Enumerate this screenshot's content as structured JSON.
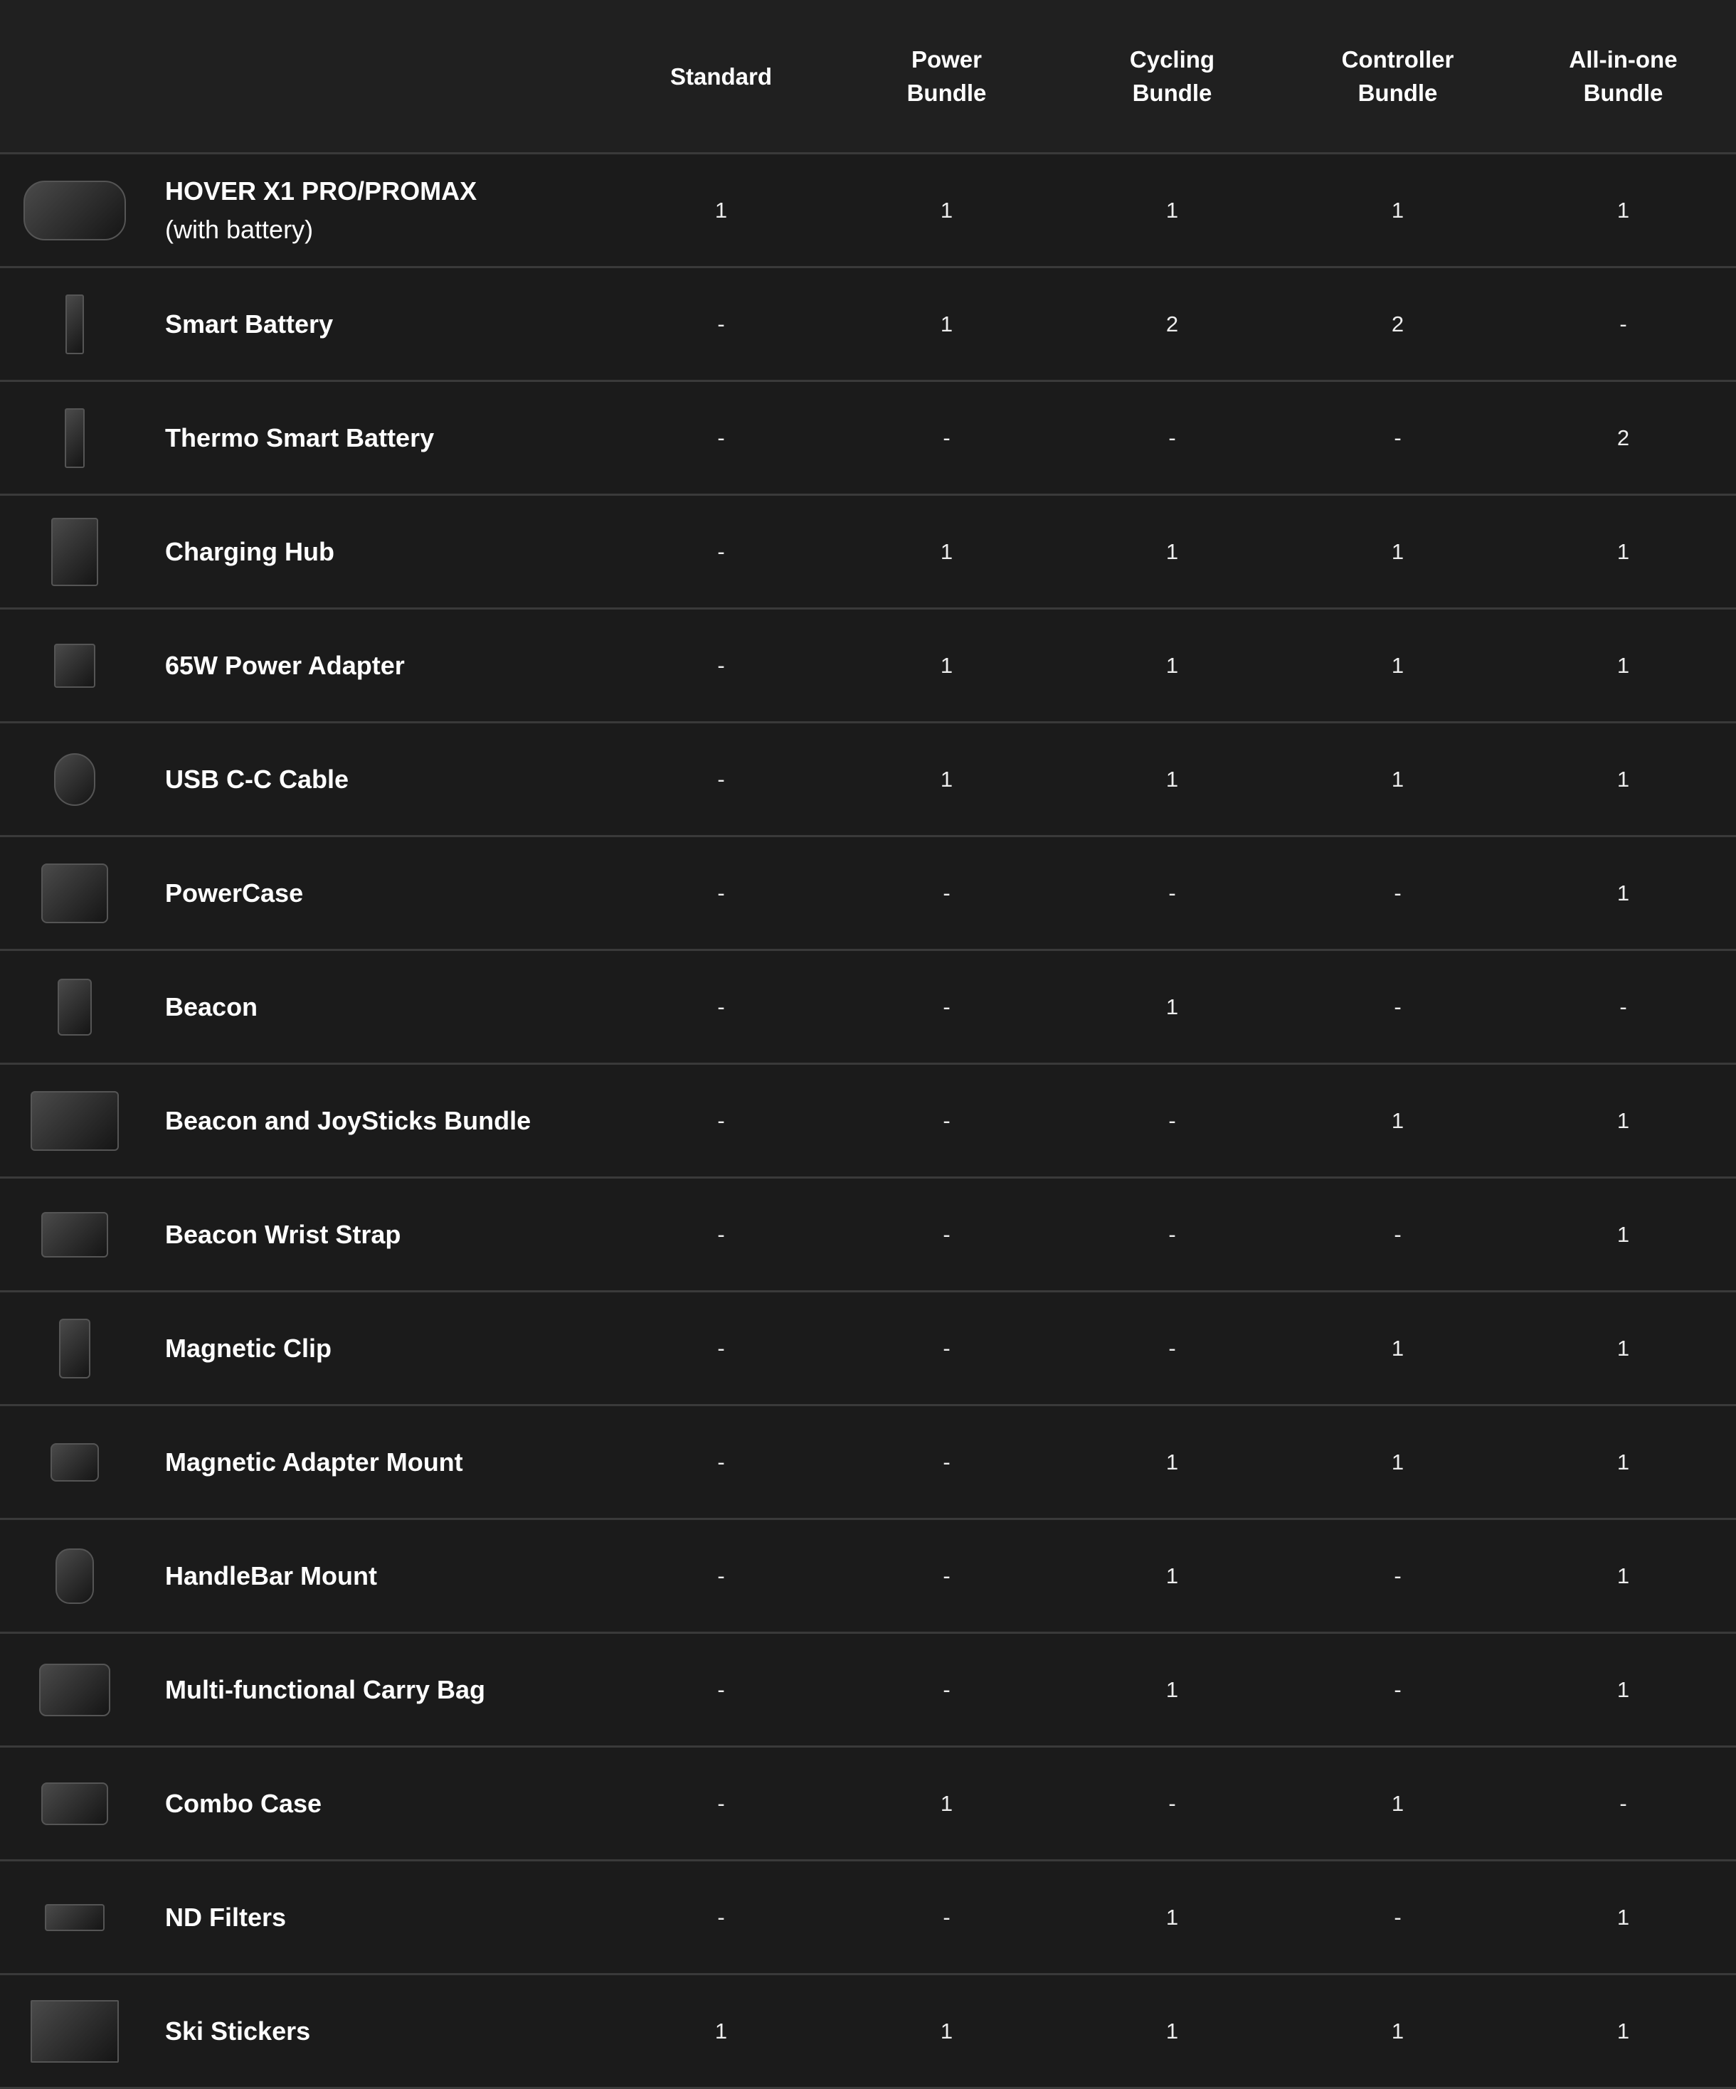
{
  "columns": [
    "Standard",
    "Power\nBundle",
    "Cycling\nBundle",
    "Controller\nBundle",
    "All-in-one\nBundle"
  ],
  "rows": [
    {
      "name": "HOVER X1 PRO/PROMAX",
      "sub": "(with battery)",
      "icon": "drone-image",
      "values": [
        "1",
        "1",
        "1",
        "1",
        "1"
      ]
    },
    {
      "name": "Smart Battery",
      "icon": "battery-image",
      "values": [
        "-",
        "1",
        "2",
        "2",
        "-"
      ]
    },
    {
      "name": "Thermo Smart Battery",
      "icon": "thermo-battery-image",
      "values": [
        "-",
        "-",
        "-",
        "-",
        "2"
      ]
    },
    {
      "name": "Charging Hub",
      "icon": "charging-hub-image",
      "values": [
        "-",
        "1",
        "1",
        "1",
        "1"
      ]
    },
    {
      "name": "65W Power Adapter",
      "icon": "power-adapter-image",
      "values": [
        "-",
        "1",
        "1",
        "1",
        "1"
      ]
    },
    {
      "name": "USB C-C Cable",
      "icon": "cable-image",
      "values": [
        "-",
        "1",
        "1",
        "1",
        "1"
      ]
    },
    {
      "name": "PowerCase",
      "icon": "powercase-image",
      "values": [
        "-",
        "-",
        "-",
        "-",
        "1"
      ]
    },
    {
      "name": "Beacon",
      "icon": "beacon-image",
      "values": [
        "-",
        "-",
        "1",
        "-",
        "-"
      ]
    },
    {
      "name": "Beacon and JoySticks Bundle",
      "icon": "beacon-joysticks-image",
      "values": [
        "-",
        "-",
        "-",
        "1",
        "1"
      ]
    },
    {
      "name": "Beacon Wrist Strap",
      "icon": "wrist-strap-image",
      "values": [
        "-",
        "-",
        "-",
        "-",
        "1"
      ]
    },
    {
      "name": "Magnetic Clip",
      "icon": "magnetic-clip-image",
      "values": [
        "-",
        "-",
        "-",
        "1",
        "1"
      ]
    },
    {
      "name": "Magnetic Adapter Mount",
      "icon": "adapter-mount-image",
      "values": [
        "-",
        "-",
        "1",
        "1",
        "1"
      ]
    },
    {
      "name": "HandleBar Mount",
      "icon": "handlebar-mount-image",
      "values": [
        "-",
        "-",
        "1",
        "-",
        "1"
      ]
    },
    {
      "name": "Multi-functional Carry Bag",
      "icon": "carry-bag-image",
      "values": [
        "-",
        "-",
        "1",
        "-",
        "1"
      ]
    },
    {
      "name": "Combo Case",
      "icon": "combo-case-image",
      "values": [
        "-",
        "1",
        "-",
        "1",
        "-"
      ]
    },
    {
      "name": "ND Filters",
      "icon": "nd-filters-image",
      "values": [
        "-",
        "-",
        "1",
        "-",
        "1"
      ]
    },
    {
      "name": "Ski Stickers",
      "icon": "ski-stickers-image",
      "values": [
        "1",
        "1",
        "1",
        "1",
        "1"
      ]
    }
  ]
}
